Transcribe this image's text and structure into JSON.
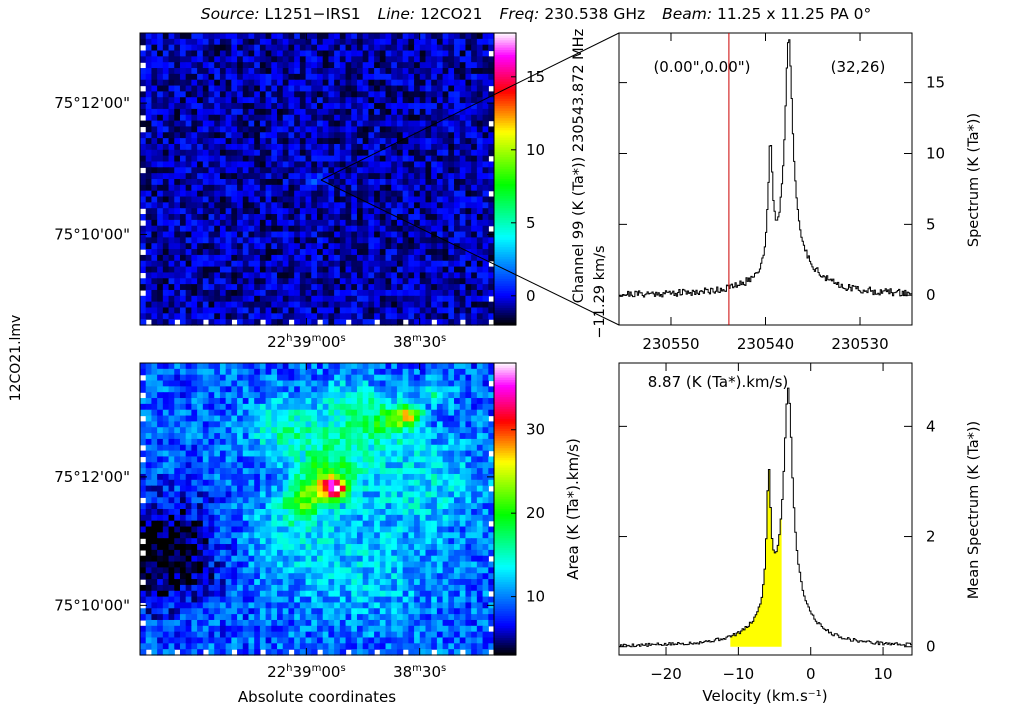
{
  "header": {
    "source_label": "Source:",
    "source_value": "L1251−IRS1",
    "line_label": "Line:",
    "line_value": "12CO21",
    "freq_label": "Freq:",
    "freq_value": "230.538 GHz",
    "beam_label": "Beam:",
    "beam_value": "11.25 x 11.25 PA 0°"
  },
  "side_label": "12CO21.lmv",
  "colormap": {
    "low": "#000000",
    "blue": "#0000ff",
    "cyan": "#00ffff",
    "green": "#00ff00",
    "yellow": "#ffff00",
    "red": "#ff0000",
    "magenta": "#ff00ff",
    "high": "#ffffff",
    "highlight": "#ffff00",
    "marker": "#cc0000"
  },
  "chart_data": [
    {
      "type": "heatmap",
      "name": "channel-map",
      "ra_ticks": [
        {
          "h": "22",
          "m": "39",
          "s": "00",
          "frac": 0.47
        },
        {
          "h": "",
          "m": "38",
          "s": "30",
          "frac": 0.79
        }
      ],
      "dec_ticks": [
        {
          "label": "75°12'00\"",
          "frac": 0.24
        },
        {
          "label": "75°10'00\"",
          "frac": 0.69
        }
      ],
      "colorbar": {
        "title": "",
        "range": [
          -2,
          18
        ],
        "ticks": [
          0,
          5,
          10,
          15
        ]
      },
      "hotspots": [
        {
          "fx": 0.5,
          "fy": 0.5,
          "amp": 1.5,
          "r": 0.03
        }
      ],
      "base_level": -0.6,
      "noise_amp": 1.2,
      "seed": 7
    },
    {
      "type": "heatmap",
      "name": "integrated-area-map",
      "ra_ticks": [
        {
          "h": "22",
          "m": "39",
          "s": "00",
          "frac": 0.47
        },
        {
          "h": "",
          "m": "38",
          "s": "30",
          "frac": 0.79
        }
      ],
      "dec_ticks": [
        {
          "label": "75°12'00\"",
          "frac": 0.39
        },
        {
          "label": "75°10'00\"",
          "frac": 0.83
        }
      ],
      "xlabel": "Absolute coordinates",
      "colorbar": {
        "title": "Area (K (Ta*).km/s)",
        "range": [
          3,
          38
        ],
        "ticks": [
          10,
          20,
          30
        ]
      },
      "hotspots": [
        {
          "fx": 0.55,
          "fy": 0.43,
          "amp": 20,
          "r": 0.035
        },
        {
          "fx": 0.52,
          "fy": 0.4,
          "amp": 8,
          "r": 0.07
        },
        {
          "fx": 0.47,
          "fy": 0.46,
          "amp": 7,
          "r": 0.06
        },
        {
          "fx": 0.45,
          "fy": 0.51,
          "amp": 5,
          "r": 0.05
        },
        {
          "fx": 0.76,
          "fy": 0.18,
          "amp": 15,
          "r": 0.035
        },
        {
          "fx": 0.7,
          "fy": 0.2,
          "amp": 8,
          "r": 0.07
        },
        {
          "fx": 0.84,
          "fy": 0.1,
          "amp": 6,
          "r": 0.04
        },
        {
          "fx": 0.4,
          "fy": 0.22,
          "amp": 6,
          "r": 0.09
        },
        {
          "fx": 0.6,
          "fy": 0.14,
          "amp": 5,
          "r": 0.09
        },
        {
          "fx": 0.55,
          "fy": 0.3,
          "amp": 6,
          "r": 0.12
        },
        {
          "fx": 0.4,
          "fy": 0.6,
          "amp": 3,
          "r": 0.16
        },
        {
          "fx": 0.8,
          "fy": 0.4,
          "amp": 4,
          "r": 0.16
        },
        {
          "fx": 0.65,
          "fy": 0.7,
          "amp": 3,
          "r": 0.2
        }
      ],
      "base_level": 9,
      "noise_amp": 3,
      "seed": 13,
      "corner_dark": {
        "fx": 0.05,
        "fy": 0.65,
        "amp": -7,
        "r": 0.18
      }
    },
    {
      "type": "line",
      "name": "spectrum-at-position",
      "xlabel_top": "Channel 99 (K (Ta*))   230543.872 MHz",
      "xlabel_bottom": "−11.29 km/s",
      "ylabel": "Spectrum (K (Ta*))",
      "position_label": "(0.00\",0.00\")",
      "pixel_label": "(32,26)",
      "x_ticks": [
        230550,
        230540,
        230530
      ],
      "x_range": [
        230555.5,
        230524.5
      ],
      "y_ticks": [
        0,
        5,
        10,
        15
      ],
      "y_range": [
        -2.1,
        18.5
      ],
      "marker_x": 230543.872,
      "peaks": [
        {
          "x": 230539.55,
          "amp": 8.5,
          "w": 0.28
        },
        {
          "x": 230537.6,
          "amp": 15.5,
          "w": 0.5
        },
        {
          "x": 230537.4,
          "amp": 2.6,
          "w": 2.8
        }
      ],
      "noise": 0.25
    },
    {
      "type": "area",
      "name": "mean-spectrum",
      "title": "8.87 (K (Ta*).km/s)",
      "xlabel": "Velocity (km.s⁻¹)",
      "ylabel": "Mean Spectrum (K (Ta*))",
      "x_ticks": [
        -20,
        -10,
        0,
        10
      ],
      "x_range": [
        -26.5,
        14
      ],
      "y_ticks": [
        0,
        2,
        4
      ],
      "y_range": [
        -0.15,
        5.15
      ],
      "fill_range": [
        -11.29,
        -3.9
      ],
      "peaks": [
        {
          "x": -5.9,
          "amp": 2.3,
          "w": 0.35
        },
        {
          "x": -3.2,
          "amp": 3.6,
          "w": 0.7
        },
        {
          "x": -3.7,
          "amp": 1.1,
          "w": 3.0
        }
      ],
      "noise": 0.03
    }
  ]
}
